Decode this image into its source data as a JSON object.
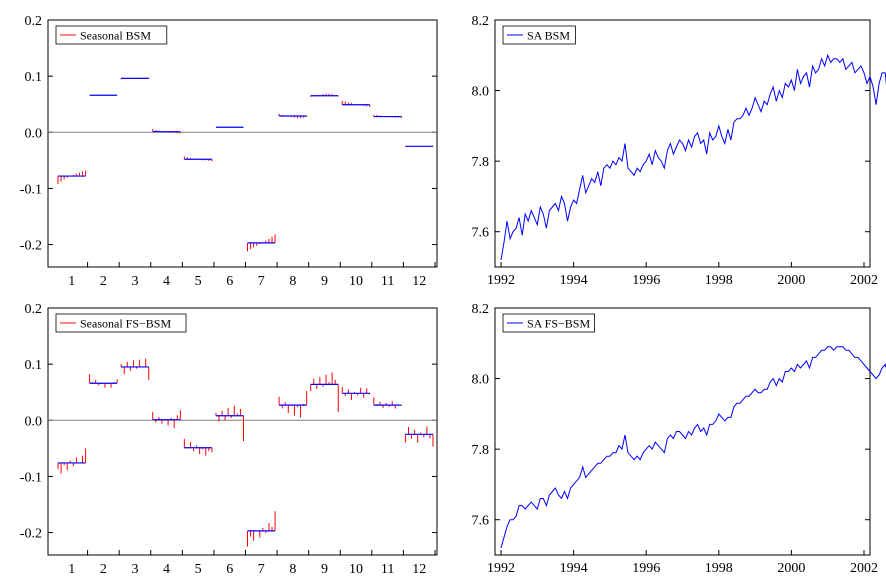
{
  "colors": {
    "seasonal_line": "#ff0000",
    "seasonal_mean": "#0000ff",
    "sa_line": "#0000ff",
    "zero_line": "#808080",
    "frame": "#000000"
  },
  "chart_data": [
    {
      "id": "seasonal_bsm",
      "type": "line",
      "legend": "Seasonal BSM",
      "legend_position": "top-left",
      "xlabel": "",
      "ylabel": "",
      "categories": [
        "1",
        "2",
        "3",
        "4",
        "5",
        "6",
        "7",
        "8",
        "9",
        "10",
        "11",
        "12"
      ],
      "ylim": [
        -0.24,
        0.2
      ],
      "yticks": [
        "-0.2",
        "-0.1",
        "0.0",
        "0.1",
        "0.2"
      ],
      "ytick_values": [
        -0.2,
        -0.1,
        0.0,
        0.1,
        0.2
      ],
      "reference_line": 0.0,
      "month_means": [
        -0.078,
        0.066,
        0.096,
        0.001,
        -0.048,
        0.009,
        -0.197,
        0.029,
        0.065,
        0.049,
        0.028,
        -0.025
      ],
      "month_values": [
        [
          -0.092,
          -0.088,
          -0.084,
          -0.081,
          -0.078,
          -0.076,
          -0.074,
          -0.072,
          -0.07,
          -0.068
        ],
        [
          0.066,
          0.066,
          0.066,
          0.066,
          0.066,
          0.066,
          0.066,
          0.066,
          0.066,
          0.066
        ],
        [
          0.094,
          0.095,
          0.095,
          0.096,
          0.096,
          0.096,
          0.097,
          0.097,
          0.097,
          0.098
        ],
        [
          0.006,
          0.004,
          0.003,
          0.002,
          0.001,
          0.0,
          -0.001,
          -0.001,
          -0.002,
          -0.002
        ],
        [
          -0.043,
          -0.045,
          -0.046,
          -0.047,
          -0.048,
          -0.049,
          -0.05,
          -0.05,
          -0.051,
          -0.052
        ],
        [
          0.009,
          0.009,
          0.009,
          0.009,
          0.009,
          0.009,
          0.009,
          0.009,
          0.009,
          0.009
        ],
        [
          -0.212,
          -0.208,
          -0.205,
          -0.202,
          -0.199,
          -0.196,
          -0.193,
          -0.19,
          -0.186,
          -0.182
        ],
        [
          0.033,
          0.031,
          0.029,
          0.028,
          0.027,
          0.026,
          0.025,
          0.025,
          0.026,
          0.027
        ],
        [
          0.063,
          0.064,
          0.065,
          0.066,
          0.068,
          0.069,
          0.069,
          0.068,
          0.066,
          0.064
        ],
        [
          0.056,
          0.055,
          0.053,
          0.052,
          0.05,
          0.049,
          0.048,
          0.047,
          0.046,
          0.045
        ],
        [
          0.031,
          0.031,
          0.03,
          0.029,
          0.028,
          0.028,
          0.027,
          0.026,
          0.026,
          0.025
        ],
        [
          -0.026,
          -0.026,
          -0.025,
          -0.025,
          -0.025,
          -0.025,
          -0.024,
          -0.024,
          -0.024,
          -0.024
        ]
      ]
    },
    {
      "id": "sa_bsm",
      "type": "line",
      "legend": "SA BSM",
      "legend_position": "top-left",
      "xlabel": "",
      "ylabel": "",
      "xlim": [
        1992,
        2002
      ],
      "xticks": [
        "1992",
        "1994",
        "1996",
        "1998",
        "2000",
        "2002"
      ],
      "xtick_values": [
        1992,
        1994,
        1996,
        1998,
        2000,
        2002
      ],
      "ylim": [
        7.5,
        8.2
      ],
      "yticks": [
        "7.6",
        "7.8",
        "8.0",
        "8.2"
      ],
      "ytick_values": [
        7.6,
        7.8,
        8.0,
        8.2
      ],
      "x_start": 1992.0,
      "x_step": 0.08333,
      "values": [
        7.52,
        7.57,
        7.63,
        7.58,
        7.6,
        7.61,
        7.64,
        7.59,
        7.65,
        7.63,
        7.66,
        7.64,
        7.62,
        7.67,
        7.65,
        7.61,
        7.66,
        7.67,
        7.68,
        7.66,
        7.7,
        7.68,
        7.63,
        7.67,
        7.69,
        7.68,
        7.72,
        7.76,
        7.71,
        7.73,
        7.75,
        7.74,
        7.77,
        7.73,
        7.78,
        7.79,
        7.78,
        7.8,
        7.79,
        7.81,
        7.8,
        7.85,
        7.78,
        7.77,
        7.76,
        7.78,
        7.77,
        7.79,
        7.8,
        7.82,
        7.79,
        7.83,
        7.81,
        7.8,
        7.78,
        7.83,
        7.85,
        7.82,
        7.84,
        7.86,
        7.85,
        7.83,
        7.86,
        7.84,
        7.87,
        7.88,
        7.85,
        7.86,
        7.82,
        7.88,
        7.86,
        7.87,
        7.9,
        7.87,
        7.85,
        7.89,
        7.86,
        7.91,
        7.92,
        7.92,
        7.93,
        7.95,
        7.93,
        7.95,
        7.98,
        7.96,
        7.94,
        7.97,
        7.96,
        7.99,
        8.01,
        7.97,
        8.0,
        7.98,
        8.02,
        8.01,
        8.03,
        8.0,
        8.06,
        8.02,
        8.04,
        8.05,
        8.01,
        8.07,
        8.05,
        8.06,
        8.09,
        8.07,
        8.1,
        8.08,
        8.09,
        8.09,
        8.08,
        8.09,
        8.06,
        8.07,
        8.08,
        8.05,
        8.06,
        8.07,
        8.05,
        8.02,
        8.04,
        8.01,
        7.96,
        8.02,
        8.05,
        8.05,
        7.97
      ]
    },
    {
      "id": "seasonal_fs_bsm",
      "type": "line",
      "legend": "Seasonal FS−BSM",
      "legend_position": "top-left",
      "xlabel": "",
      "ylabel": "",
      "categories": [
        "1",
        "2",
        "3",
        "4",
        "5",
        "6",
        "7",
        "8",
        "9",
        "10",
        "11",
        "12"
      ],
      "ylim": [
        -0.24,
        0.2
      ],
      "yticks": [
        "-0.2",
        "-0.1",
        "0.0",
        "0.1",
        "0.2"
      ],
      "ytick_values": [
        -0.2,
        -0.1,
        0.0,
        0.1,
        0.2
      ],
      "reference_line": 0.0,
      "month_means": [
        -0.076,
        0.066,
        0.095,
        0.001,
        -0.049,
        0.008,
        -0.197,
        0.027,
        0.064,
        0.048,
        0.027,
        -0.025
      ],
      "month_values": [
        [
          -0.087,
          -0.095,
          -0.08,
          -0.089,
          -0.072,
          -0.082,
          -0.066,
          -0.077,
          -0.063,
          -0.05
        ],
        [
          0.082,
          0.068,
          0.072,
          0.062,
          0.065,
          0.058,
          0.066,
          0.058,
          0.068,
          0.073
        ],
        [
          0.1,
          0.082,
          0.104,
          0.088,
          0.107,
          0.092,
          0.108,
          0.094,
          0.11,
          0.072
        ],
        [
          0.015,
          -0.004,
          0.006,
          -0.006,
          0.002,
          -0.009,
          0.004,
          -0.014,
          0.009,
          0.018
        ],
        [
          -0.033,
          -0.048,
          -0.039,
          -0.055,
          -0.045,
          -0.06,
          -0.052,
          -0.063,
          -0.055,
          -0.057
        ],
        [
          0.013,
          -0.002,
          0.017,
          0.0,
          0.022,
          0.004,
          0.026,
          0.012,
          0.02,
          -0.037
        ],
        [
          -0.225,
          -0.207,
          -0.215,
          -0.198,
          -0.209,
          -0.192,
          -0.201,
          -0.183,
          -0.19,
          -0.162
        ],
        [
          0.042,
          0.021,
          0.032,
          0.013,
          0.027,
          0.008,
          0.024,
          0.005,
          0.029,
          0.052
        ],
        [
          0.052,
          0.074,
          0.056,
          0.077,
          0.06,
          0.081,
          0.068,
          0.085,
          0.072,
          0.015
        ],
        [
          0.059,
          0.043,
          0.055,
          0.036,
          0.05,
          0.044,
          0.058,
          0.04,
          0.057,
          0.046
        ],
        [
          0.041,
          0.029,
          0.033,
          0.022,
          0.031,
          0.024,
          0.034,
          0.021,
          0.028,
          0.026
        ],
        [
          -0.04,
          -0.012,
          -0.033,
          -0.017,
          -0.04,
          -0.022,
          -0.03,
          -0.011,
          -0.032,
          -0.047
        ]
      ]
    },
    {
      "id": "sa_fs_bsm",
      "type": "line",
      "legend": "SA FS−BSM",
      "legend_position": "top-left",
      "xlabel": "",
      "ylabel": "",
      "xlim": [
        1992,
        2002
      ],
      "xticks": [
        "1992",
        "1994",
        "1996",
        "1998",
        "2000",
        "2002"
      ],
      "xtick_values": [
        1992,
        1994,
        1996,
        1998,
        2000,
        2002
      ],
      "ylim": [
        7.5,
        8.2
      ],
      "yticks": [
        "7.6",
        "7.8",
        "8.0",
        "8.2"
      ],
      "ytick_values": [
        7.6,
        7.8,
        8.0,
        8.2
      ],
      "x_start": 1992.0,
      "x_step": 0.08333,
      "values": [
        7.52,
        7.55,
        7.58,
        7.6,
        7.6,
        7.61,
        7.64,
        7.64,
        7.63,
        7.64,
        7.65,
        7.64,
        7.63,
        7.66,
        7.66,
        7.64,
        7.67,
        7.68,
        7.69,
        7.67,
        7.66,
        7.68,
        7.66,
        7.69,
        7.7,
        7.71,
        7.72,
        7.75,
        7.72,
        7.73,
        7.74,
        7.75,
        7.76,
        7.76,
        7.77,
        7.78,
        7.78,
        7.79,
        7.79,
        7.81,
        7.8,
        7.84,
        7.79,
        7.78,
        7.77,
        7.78,
        7.77,
        7.79,
        7.8,
        7.81,
        7.8,
        7.82,
        7.81,
        7.8,
        7.79,
        7.83,
        7.84,
        7.83,
        7.85,
        7.85,
        7.84,
        7.83,
        7.85,
        7.84,
        7.86,
        7.87,
        7.85,
        7.86,
        7.84,
        7.87,
        7.87,
        7.88,
        7.9,
        7.89,
        7.88,
        7.89,
        7.89,
        7.92,
        7.93,
        7.93,
        7.94,
        7.95,
        7.95,
        7.96,
        7.97,
        7.96,
        7.96,
        7.97,
        7.97,
        7.99,
        8.0,
        7.98,
        8.0,
        7.99,
        8.02,
        8.02,
        8.03,
        8.02,
        8.04,
        8.03,
        8.04,
        8.05,
        8.03,
        8.06,
        8.06,
        8.07,
        8.08,
        8.08,
        8.09,
        8.09,
        8.08,
        8.09,
        8.09,
        8.09,
        8.08,
        8.08,
        8.07,
        8.06,
        8.06,
        8.05,
        8.04,
        8.03,
        8.02,
        8.01,
        8.0,
        8.01,
        8.03,
        8.04,
        8.01
      ]
    }
  ]
}
